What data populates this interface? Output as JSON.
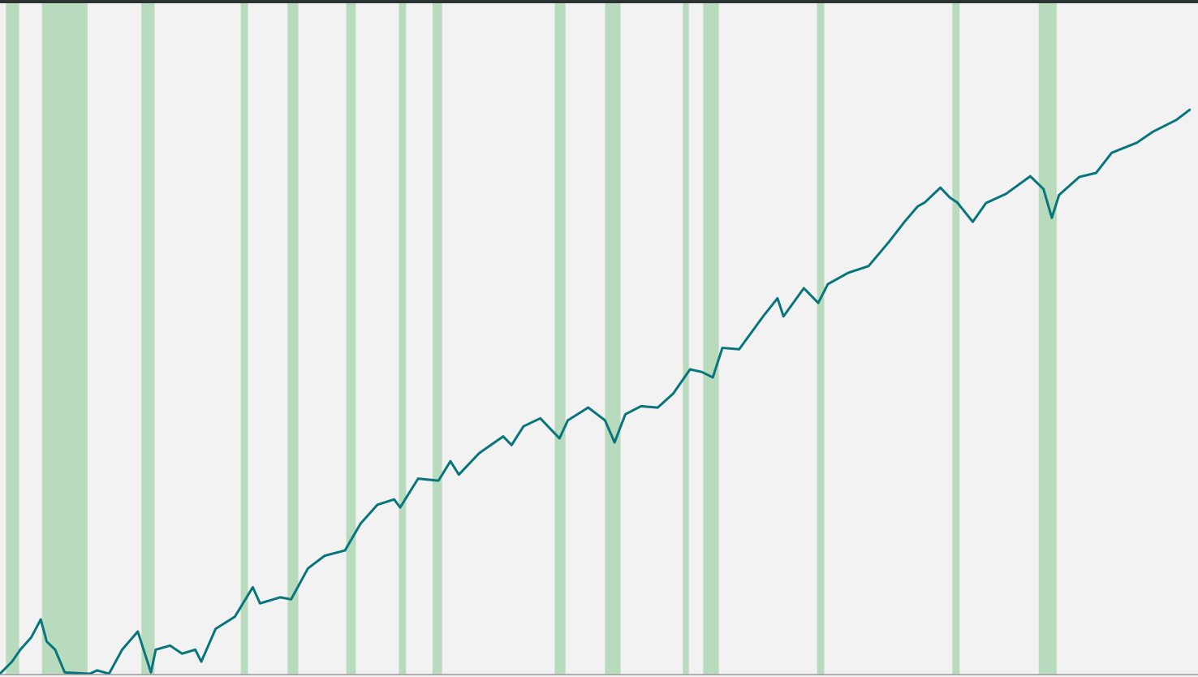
{
  "chart_data": {
    "type": "line",
    "xlim": [
      0,
      100
    ],
    "ylim": [
      0,
      100
    ],
    "bands": [
      [
        0.5,
        1.6
      ],
      [
        3.5,
        7.3
      ],
      [
        11.8,
        12.9
      ],
      [
        20.1,
        20.7
      ],
      [
        24.0,
        24.9
      ],
      [
        28.9,
        29.7
      ],
      [
        33.3,
        33.9
      ],
      [
        36.1,
        36.9
      ],
      [
        46.3,
        47.2
      ],
      [
        50.5,
        51.8
      ],
      [
        57.0,
        57.5
      ],
      [
        58.7,
        60.0
      ],
      [
        68.2,
        68.8
      ],
      [
        79.5,
        80.1
      ],
      [
        86.7,
        88.2
      ]
    ],
    "band_color": "#b9dbbd",
    "series": [
      {
        "color": "#08757c",
        "x": [
          0,
          1.0,
          1.7,
          2.6,
          3.4,
          3.9,
          4.6,
          5.4,
          7.5,
          8.1,
          9.1,
          10.2,
          11.5,
          12.2,
          12.6,
          13.0,
          14.2,
          15.2,
          16.3,
          16.8,
          18.0,
          19.6,
          21.1,
          21.7,
          23.4,
          24.3,
          25.7,
          27.1,
          28.8,
          30.1,
          31.5,
          32.9,
          33.4,
          34.9,
          36.6,
          37.6,
          38.3,
          40.0,
          42.0,
          42.7,
          43.7,
          45.1,
          46.7,
          47.4,
          49.1,
          50.5,
          51.3,
          52.2,
          53.5,
          54.9,
          56.2,
          57.6,
          58.6,
          59.5,
          60.3,
          61.7,
          63.7,
          64.9,
          65.4,
          67.1,
          68.3,
          69.1,
          70.8,
          72.5,
          74.2,
          75.5,
          76.6,
          77.2,
          78.5,
          79.3,
          79.9,
          81.2,
          82.3,
          84.0,
          86.0,
          87.1,
          87.8,
          88.4,
          90.1,
          91.5,
          92.8,
          94.9,
          96.2,
          98.2,
          99.3
        ],
        "values": [
          0,
          1.8,
          3.6,
          5.4,
          8.1,
          4.8,
          3.6,
          0.2,
          0,
          0.5,
          0,
          3.6,
          6.3,
          2.4,
          0.2,
          3.6,
          4.2,
          3.0,
          3.6,
          1.8,
          6.7,
          8.5,
          12.9,
          10.5,
          11.4,
          11.1,
          15.7,
          17.6,
          18.4,
          22.4,
          25.2,
          26.0,
          24.8,
          29.1,
          28.8,
          31.7,
          29.7,
          32.9,
          35.4,
          34.1,
          36.9,
          38.1,
          35.1,
          37.8,
          39.7,
          37.8,
          34.5,
          38.7,
          39.9,
          39.7,
          41.8,
          45.4,
          45.0,
          44.2,
          48.6,
          48.4,
          53.3,
          56.0,
          53.3,
          57.5,
          55.3,
          58.1,
          59.8,
          60.8,
          64.4,
          67.4,
          69.7,
          70.3,
          72.5,
          71.0,
          70.3,
          67.4,
          70.2,
          71.6,
          74.2,
          72.3,
          68.0,
          71.4,
          74.1,
          74.7,
          77.7,
          79.2,
          80.8,
          82.6,
          84.1
        ]
      }
    ]
  }
}
